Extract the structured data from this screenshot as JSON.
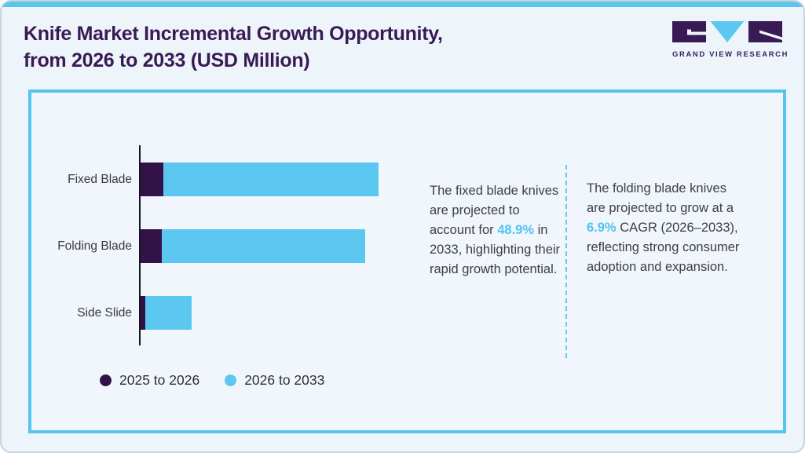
{
  "header": {
    "title_line1": "Knife Market Incremental Growth Opportunity,",
    "title_line2": "from 2026 to 2033 (USD Million)",
    "logo": {
      "name": "GRAND VIEW RESEARCH",
      "glyphs": "GVR monogram: purple G block, blue V triangle, purple R block"
    }
  },
  "chart_data": {
    "type": "bar",
    "orientation": "horizontal",
    "title": "Knife Market Incremental Growth Opportunity, from 2026 to 2033 (USD Million)",
    "value_units": "USD Million (no tick labels shown; values estimated as % of largest total bar)",
    "value_range": [
      0,
      100
    ],
    "grid": false,
    "legend_position": "bottom-left",
    "categories": [
      "Fixed Blade",
      "Folding Blade",
      "Side Slide"
    ],
    "series": [
      {
        "name": "2025 to 2026",
        "color": "#331347",
        "values": [
          9.6,
          8.9,
          1.9
        ]
      },
      {
        "name": "2026 to 2033",
        "color": "#5cc8f2",
        "values": [
          90.4,
          85.5,
          19.5
        ]
      }
    ]
  },
  "annotations": {
    "left": {
      "segments": [
        {
          "text": "The fixed blade knives are projected to account for "
        },
        {
          "text": "48.9%",
          "highlight": true
        },
        {
          "text": " in 2033, highlighting their rapid growth potential."
        }
      ]
    },
    "right": {
      "segments": [
        {
          "text": "The folding blade knives are projected to grow at a "
        },
        {
          "text": "6.9%",
          "highlight": true
        },
        {
          "text": " CAGR (2026–2033), reflecting strong consumer adoption and expansion."
        }
      ]
    }
  },
  "colors": {
    "accent_blue": "#5cc8f2",
    "dark_purple": "#331347",
    "title_purple": "#3a1a55",
    "panel_border": "#55c4ee",
    "top_strip": "#5ac6ee",
    "divider_dash": "#66c9ef",
    "highlight_text": "#4fc3ef",
    "body_text": "#3d3d49",
    "background": "#eef5fa"
  }
}
